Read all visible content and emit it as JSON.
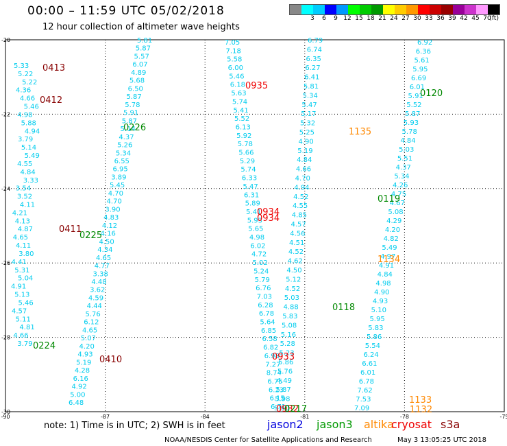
{
  "header": {
    "title": "00:00 – 11:59 UTC 05/02/2018",
    "subtitle": "12 hour collection of altimeter wave heights"
  },
  "scale": {
    "unit": "(ft)",
    "colors": [
      "#888888",
      "#00ffff",
      "#00ccff",
      "#0000ff",
      "#0099ff",
      "#00ff00",
      "#00cc00",
      "#009900",
      "#ffff00",
      "#ffcc00",
      "#ff9900",
      "#ff0000",
      "#cc0000",
      "#990000",
      "#990099",
      "#cc33cc",
      "#ff99ff",
      "#000000"
    ],
    "labels": [
      "3",
      "6",
      "9",
      "12",
      "15",
      "18",
      "21",
      "24",
      "27",
      "30",
      "33",
      "36",
      "39",
      "42",
      "45",
      "70"
    ]
  },
  "map": {
    "x_axis_labels": [
      "-90",
      "-87",
      "-84",
      "-81",
      "-78",
      "-75"
    ],
    "y_axis_labels": [
      "-20",
      "-22",
      "-24",
      "-26",
      "-28",
      "-30"
    ],
    "track_color": "#00ccee",
    "tracks": [
      {
        "values": [
          "5.81",
          "5.87",
          "5.57",
          "6.07",
          "4.89",
          "5.68",
          "6.50",
          "5.87",
          "5.78",
          "5.91",
          "5.87",
          "5.14",
          "4.37",
          "5.26",
          "5.34",
          "6.55",
          "6.95",
          "3.89",
          "5.45",
          "4.70",
          "4.70",
          "3.90",
          "4.83",
          "4.12",
          "4.16",
          "4.50",
          "4.34",
          "4.65",
          "4.77",
          "3.38",
          "4.48",
          "3.62",
          "4.59",
          "4.44",
          "5.76",
          "6.12",
          "4.65",
          "5.07",
          "4.20",
          "4.93",
          "5.19",
          "4.28",
          "6.16",
          "4.92",
          "5.00",
          "6.48"
        ]
      },
      {
        "values": [
          "5.33",
          "5.22",
          "5.22",
          "4.36",
          "4.66",
          "5.46",
          "4.98",
          "5.88",
          "4.94",
          "3.79",
          "5.14",
          "5.49",
          "4.55",
          "4.84",
          "3.33",
          "3.54",
          "3.52",
          "4.11",
          "4.21",
          "4.13",
          "4.87",
          "4.65",
          "4.11",
          "3.80",
          "4.41",
          "5.31",
          "5.04",
          "4.91",
          "5.13",
          "5.46",
          "4.57",
          "5.11",
          "4.81",
          "4.66",
          "3.79"
        ]
      },
      {
        "values": [
          "7.05",
          "7.18",
          "5.58",
          "6.00",
          "5.46",
          "6.18",
          "5.63",
          "5.74",
          "5.41",
          "5.52",
          "6.13",
          "5.92",
          "5.78",
          "5.66",
          "5.29",
          "5.74",
          "6.33",
          "5.47",
          "6.31",
          "5.89",
          "5.41",
          "5.93",
          "5.65",
          "4.98",
          "6.02",
          "4.72",
          "5.02",
          "5.24",
          "5.79",
          "6.76",
          "7.03",
          "6.28",
          "6.78",
          "5.64",
          "6.85",
          "6.58",
          "6.82",
          "6.98",
          "7.27",
          "8.74",
          "6.75",
          "6.23",
          "6.15",
          "6.71"
        ]
      },
      {
        "values": [
          "6.79",
          "6.74",
          "6.35",
          "6.27",
          "6.41",
          "5.81",
          "5.34",
          "5.47",
          "5.17",
          "5.32",
          "5.25",
          "4.90",
          "5.19",
          "4.84",
          "4.66",
          "4.70",
          "4.94",
          "4.52",
          "4.55",
          "4.85",
          "4.57",
          "4.56",
          "4.51",
          "4.52",
          "4.62",
          "4.50",
          "5.12",
          "4.52",
          "5.03",
          "4.88",
          "5.83",
          "5.08",
          "5.16",
          "5.28",
          "5.23",
          "5.86",
          "5.76",
          "4.49",
          "5.87",
          "5.98",
          "5.90"
        ]
      },
      {
        "values": [
          "6.92",
          "6.36",
          "5.61",
          "5.95",
          "6.69",
          "6.01",
          "5.91",
          "5.52",
          "5.87",
          "5.93",
          "5.78",
          "4.84",
          "5.03",
          "5.51",
          "4.37",
          "5.34",
          "4.26",
          "4.75",
          "4.67",
          "5.08",
          "4.29",
          "4.20",
          "4.82",
          "5.49",
          "4.97",
          "4.91",
          "4.84",
          "4.98",
          "4.90",
          "4.93",
          "5.10",
          "5.95",
          "5.83",
          "5.86",
          "5.54",
          "6.24",
          "6.61",
          "6.01",
          "6.78",
          "7.62",
          "7.53",
          "7.09"
        ]
      }
    ],
    "time_labels": [
      {
        "text": "0413",
        "color": "#880000"
      },
      {
        "text": "0412",
        "color": "#880000"
      },
      {
        "text": "0226",
        "color": "#008800"
      },
      {
        "text": "0411",
        "color": "#880000"
      },
      {
        "text": "0225",
        "color": "#008800"
      },
      {
        "text": "0224",
        "color": "#008800"
      },
      {
        "text": "0410",
        "color": "#880000"
      },
      {
        "text": "0935",
        "color": "#ee0000"
      },
      {
        "text": "0934",
        "color": "#ee0000"
      },
      {
        "text": "0934",
        "color": "#ee0000"
      },
      {
        "text": "0933",
        "color": "#ee0000"
      },
      {
        "text": "0932",
        "color": "#ee0000"
      },
      {
        "text": "0217",
        "color": "#008800"
      },
      {
        "text": "1135",
        "color": "#ff8800"
      },
      {
        "text": "1134",
        "color": "#ff8800"
      },
      {
        "text": "1133",
        "color": "#ff8800"
      },
      {
        "text": "1132",
        "color": "#ff8800"
      },
      {
        "text": "0120",
        "color": "#008800"
      },
      {
        "text": "0119",
        "color": "#008800"
      },
      {
        "text": "0118",
        "color": "#008800"
      }
    ]
  },
  "footer": {
    "note": "note: 1) Time is in UTC; 2) SWH is in feet",
    "legend": [
      {
        "text": "jason2",
        "color": "#0000dd"
      },
      {
        "text": "jason3",
        "color": "#009900"
      },
      {
        "text": "altika",
        "color": "#ff8800"
      },
      {
        "text": "cryosat",
        "color": "#ee0000"
      },
      {
        "text": "s3a",
        "color": "#880000"
      }
    ],
    "credit": "NOAA/NESDIS Center for Satellite Applications and Research",
    "timestamp": "May  3 13:05:25 UTC 2018"
  }
}
